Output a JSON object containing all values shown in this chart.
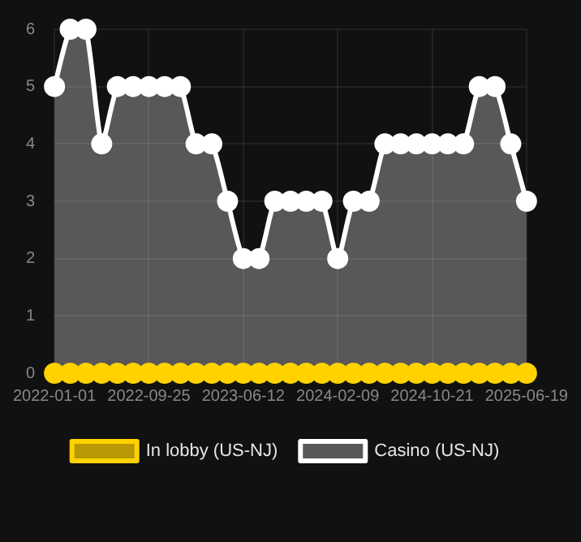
{
  "chart_data": {
    "type": "area",
    "categories": [
      "2022-01-01",
      null,
      null,
      null,
      null,
      null,
      "2022-09-25",
      null,
      null,
      null,
      null,
      null,
      "2023-06-12",
      null,
      null,
      null,
      null,
      null,
      "2024-02-09",
      null,
      null,
      null,
      null,
      null,
      "2024-10-21",
      null,
      null,
      null,
      null,
      null,
      "2025-06-19"
    ],
    "series": [
      {
        "name": "In lobby (US-NJ)",
        "type": "line",
        "color": "#ffd200",
        "values": [
          0,
          0,
          0,
          0,
          0,
          0,
          0,
          0,
          0,
          0,
          0,
          0,
          0,
          0,
          0,
          0,
          0,
          0,
          0,
          0,
          0,
          0,
          0,
          0,
          0,
          0,
          0,
          0,
          0,
          0,
          0
        ]
      },
      {
        "name": "Casino (US-NJ)",
        "color": "#ffffff",
        "values": [
          5,
          6,
          6,
          4,
          5,
          5,
          5,
          5,
          5,
          4,
          4,
          3,
          2,
          2,
          3,
          3,
          3,
          3,
          2,
          3,
          3,
          4,
          4,
          4,
          4,
          4,
          4,
          5,
          5,
          4,
          3
        ]
      }
    ],
    "ylim": [
      0,
      6
    ],
    "yticks": [
      0,
      1,
      2,
      3,
      4,
      5,
      6
    ],
    "grid": true,
    "legend": "bottom",
    "marker": "circle"
  }
}
